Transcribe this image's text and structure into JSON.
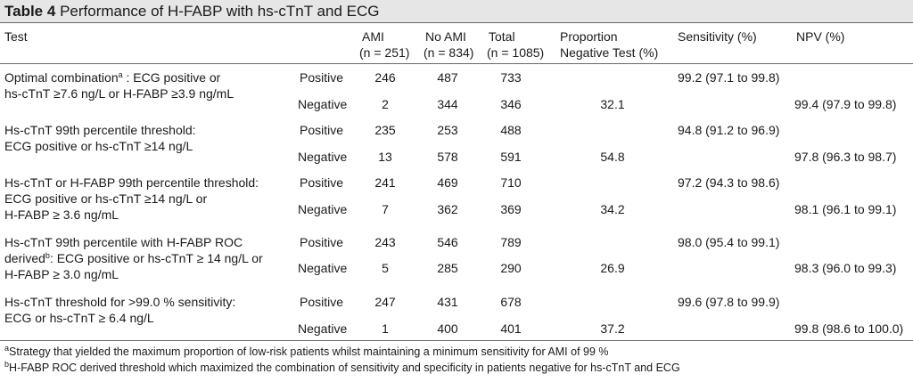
{
  "table": {
    "label": "Table 4",
    "title": "Performance of H-FABP with hs-cTnT and ECG",
    "headers": {
      "test": "Test",
      "ami": "AMI",
      "ami_n": "(n = 251)",
      "noami": "No AMI",
      "noami_n": "(n = 834)",
      "total": "Total",
      "total_n": "(n = 1085)",
      "prop_l1": "Proportion",
      "prop_l2": "Negative Test (%)",
      "sens": "Sensitivity (%)",
      "npv": "NPV (%)"
    },
    "groups": [
      {
        "test_lines": [
          "Optimal combination",
          "hs-cTnT ≥7.6 ng/L or H-FABP ≥3.9 ng/mL"
        ],
        "test_sup": "a",
        "test_tail": " : ECG positive or",
        "positive": {
          "label": "Positive",
          "ami": "246",
          "noami": "487",
          "total": "733",
          "sens": "99.2 (97.1 to 99.8)"
        },
        "negative": {
          "label": "Negative",
          "ami": "2",
          "noami": "344",
          "total": "346",
          "prop": "32.1",
          "npv": "99.4 (97.9 to 99.8)"
        }
      },
      {
        "test_lines": [
          "Hs-cTnT 99th percentile threshold:",
          "ECG positive or hs-cTnT ≥14 ng/L"
        ],
        "positive": {
          "label": "Positive",
          "ami": "235",
          "noami": "253",
          "total": "488",
          "sens": "94.8 (91.2 to 96.9)"
        },
        "negative": {
          "label": "Negative",
          "ami": "13",
          "noami": "578",
          "total": "591",
          "prop": "54.8",
          "npv": "97.8 (96.3 to 98.7)"
        }
      },
      {
        "test_lines": [
          "Hs-cTnT or H-FABP 99th percentile threshold:",
          "ECG positive or hs-cTnT ≥14 ng/L or",
          "H-FABP ≥ 3.6 ng/mL"
        ],
        "positive": {
          "label": "Positive",
          "ami": "241",
          "noami": "469",
          "total": "710",
          "sens": "97.2 (94.3 to 98.6)"
        },
        "negative": {
          "label": "Negative",
          "ami": "7",
          "noami": "362",
          "total": "369",
          "prop": "34.2",
          "npv": "98.1 (96.1 to 99.1)"
        }
      },
      {
        "test_lines": [
          "Hs-cTnT 99th percentile with H-FABP ROC",
          "derived",
          "H-FABP ≥ 3.0 ng/mL"
        ],
        "test_sup": "b",
        "test_tail": ": ECG positive or hs-cTnT ≥ 14 ng/L or",
        "positive": {
          "label": "Positive",
          "ami": "243",
          "noami": "546",
          "total": "789",
          "sens": "98.0 (95.4 to 99.1)"
        },
        "negative": {
          "label": "Negative",
          "ami": "5",
          "noami": "285",
          "total": "290",
          "prop": "26.9",
          "npv": "98.3 (96.0 to 99.3)"
        }
      },
      {
        "test_lines": [
          "Hs-cTnT threshold for >99.0 % sensitivity:",
          "ECG or hs-cTnT ≥ 6.4 ng/L"
        ],
        "positive": {
          "label": "Positive",
          "ami": "247",
          "noami": "431",
          "total": "678",
          "sens": "99.6 (97.8 to 99.9)"
        },
        "negative": {
          "label": "Negative",
          "ami": "1",
          "noami": "400",
          "total": "401",
          "prop": "37.2",
          "npv": "99.8 (98.6 to 100.0)"
        }
      }
    ],
    "footnotes": [
      {
        "mark": "a",
        "text": "Strategy that yielded the maximum proportion of low-risk patients whilst maintaining a minimum sensitivity for AMI of 99 %"
      },
      {
        "mark": "b",
        "text": "H-FABP ROC derived threshold which maximized the combination of sensitivity and specificity in patients negative for hs-cTnT and ECG"
      }
    ]
  }
}
